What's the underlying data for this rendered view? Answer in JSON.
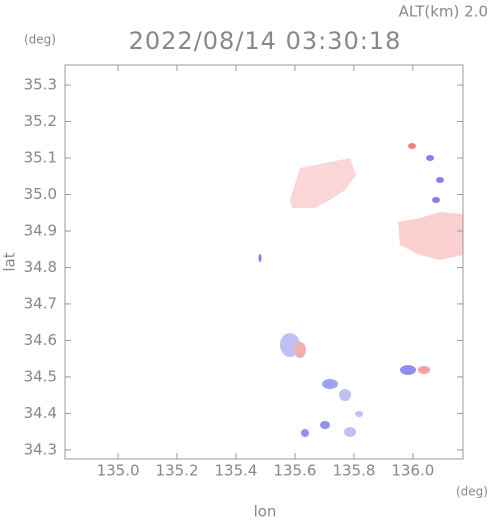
{
  "chart_data": {
    "type": "radar-map",
    "title": "2022/08/14 03:30:18",
    "subtitle": "ALT(km) 2.0",
    "y_unit": "(deg)",
    "x_unit": "(deg)",
    "xlabel": "lon",
    "ylabel": "lat",
    "xlim": [
      134.82,
      136.17
    ],
    "ylim": [
      34.275,
      35.355
    ],
    "xticks": [
      {
        "value": 135.0,
        "label": "135.0"
      },
      {
        "value": 135.2,
        "label": "135.2"
      },
      {
        "value": 135.4,
        "label": "135.4"
      },
      {
        "value": 135.6,
        "label": "135.6"
      },
      {
        "value": 135.8,
        "label": "135.8"
      },
      {
        "value": 136.0,
        "label": "136.0"
      }
    ],
    "yticks": [
      {
        "value": 34.3,
        "label": "34.3"
      },
      {
        "value": 34.4,
        "label": "34.4"
      },
      {
        "value": 34.5,
        "label": "34.5"
      },
      {
        "value": 34.6,
        "label": "34.6"
      },
      {
        "value": 34.7,
        "label": "34.7"
      },
      {
        "value": 34.8,
        "label": "34.8"
      },
      {
        "value": 34.9,
        "label": "34.9"
      },
      {
        "value": 35.0,
        "label": "35.0"
      },
      {
        "value": 35.1,
        "label": "35.1"
      },
      {
        "value": 35.2,
        "label": "35.2"
      },
      {
        "value": 35.3,
        "label": "35.3"
      }
    ]
  }
}
